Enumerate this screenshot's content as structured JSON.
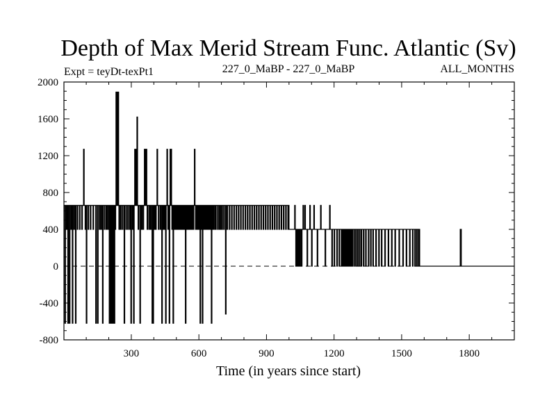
{
  "header": {
    "title": "Depth of Max Merid Stream Func. Atlantic (Sv)",
    "left": "Expt = teyDt-texPt1",
    "center": "227_0_MaBP - 227_0_MaBP",
    "right": "ALL_MONTHS"
  },
  "chart_data": {
    "type": "line",
    "title": "Depth of Max Merid Stream Func. Atlantic (Sv)",
    "xlabel": "Time (in years since start)",
    "ylabel": "",
    "xlim": [
      1,
      2000
    ],
    "ylim": [
      -800,
      2000
    ],
    "x_ticks": [
      300,
      600,
      900,
      1200,
      1500,
      1800
    ],
    "x_minor_step": 100,
    "y_ticks": [
      -800,
      -400,
      0,
      400,
      800,
      1200,
      1600,
      2000
    ],
    "y_minor_step": 100,
    "zero_line": "dashed",
    "grid": false,
    "levels": [
      -620,
      0,
      400,
      660,
      1270,
      1620,
      1890
    ],
    "segments": [
      {
        "x": [
          1,
          1000
        ],
        "base": 660,
        "dips": [
          {
            "x": 5,
            "to": -620
          },
          {
            "x": 12,
            "to": 400
          },
          {
            "x": 18,
            "to": -620
          },
          {
            "x": 25,
            "to": -620
          },
          {
            "x": 32,
            "to": 400
          },
          {
            "x": 38,
            "to": -620
          },
          {
            "x": 45,
            "to": 400
          },
          {
            "x": 52,
            "to": -620
          },
          {
            "x": 60,
            "to": 400
          },
          {
            "x": 70,
            "to": 400
          },
          {
            "x": 80,
            "to": 400
          },
          {
            "x": 88,
            "to": 1270
          },
          {
            "x": 95,
            "to": 400
          },
          {
            "x": 100,
            "to": -620
          },
          {
            "x": 108,
            "to": 400
          },
          {
            "x": 118,
            "to": 400
          },
          {
            "x": 130,
            "to": 400
          },
          {
            "x": 142,
            "to": -620
          },
          {
            "x": 150,
            "to": -620
          },
          {
            "x": 158,
            "to": 400
          },
          {
            "x": 165,
            "to": 400
          },
          {
            "x": 172,
            "to": -620
          },
          {
            "x": 180,
            "to": 400
          },
          {
            "x": 188,
            "to": 400
          },
          {
            "x": 195,
            "to": 400
          },
          {
            "x": 202,
            "to": -620
          },
          {
            "x": 208,
            "to": -620
          },
          {
            "x": 212,
            "to": -620
          },
          {
            "x": 216,
            "to": -620
          },
          {
            "x": 220,
            "to": -620
          },
          {
            "x": 224,
            "to": -620
          },
          {
            "x": 228,
            "to": 400
          },
          {
            "x": 232,
            "to": 1890
          },
          {
            "x": 235,
            "to": 1890
          },
          {
            "x": 238,
            "to": 1890
          },
          {
            "x": 241,
            "to": 1890
          },
          {
            "x": 245,
            "to": 400
          },
          {
            "x": 252,
            "to": 400
          },
          {
            "x": 260,
            "to": 400
          },
          {
            "x": 268,
            "to": -620
          },
          {
            "x": 276,
            "to": 400
          },
          {
            "x": 284,
            "to": 400
          },
          {
            "x": 292,
            "to": 400
          },
          {
            "x": 298,
            "to": -620
          },
          {
            "x": 305,
            "to": 400
          },
          {
            "x": 310,
            "to": -620
          },
          {
            "x": 315,
            "to": 1270
          },
          {
            "x": 320,
            "to": 1270
          },
          {
            "x": 325,
            "to": 1620
          },
          {
            "x": 330,
            "to": 400
          },
          {
            "x": 338,
            "to": -620
          },
          {
            "x": 345,
            "to": 400
          },
          {
            "x": 352,
            "to": 400
          },
          {
            "x": 358,
            "to": 1270
          },
          {
            "x": 362,
            "to": 1270
          },
          {
            "x": 366,
            "to": 1270
          },
          {
            "x": 370,
            "to": 400
          },
          {
            "x": 378,
            "to": 400
          },
          {
            "x": 385,
            "to": 400
          },
          {
            "x": 392,
            "to": -620
          },
          {
            "x": 396,
            "to": -620
          },
          {
            "x": 402,
            "to": 400
          },
          {
            "x": 408,
            "to": 400
          },
          {
            "x": 414,
            "to": 1270
          },
          {
            "x": 420,
            "to": 400
          },
          {
            "x": 428,
            "to": 400
          },
          {
            "x": 435,
            "to": -620
          },
          {
            "x": 440,
            "to": 400
          },
          {
            "x": 446,
            "to": 400
          },
          {
            "x": 452,
            "to": -620
          },
          {
            "x": 458,
            "to": 1270
          },
          {
            "x": 462,
            "to": 400
          },
          {
            "x": 468,
            "to": -620
          },
          {
            "x": 472,
            "to": 1270
          },
          {
            "x": 476,
            "to": 1270
          },
          {
            "x": 480,
            "to": 400
          },
          {
            "x": 485,
            "to": -620
          },
          {
            "x": 490,
            "to": 400
          },
          {
            "x": 495,
            "to": 400
          },
          {
            "x": 500,
            "to": 400
          },
          {
            "x": 505,
            "to": 400
          },
          {
            "x": 510,
            "to": 400
          },
          {
            "x": 515,
            "to": 400
          },
          {
            "x": 520,
            "to": 400
          },
          {
            "x": 525,
            "to": 400
          },
          {
            "x": 530,
            "to": 400
          },
          {
            "x": 535,
            "to": 400
          },
          {
            "x": 540,
            "to": -620
          },
          {
            "x": 545,
            "to": 400
          },
          {
            "x": 550,
            "to": 400
          },
          {
            "x": 555,
            "to": 400
          },
          {
            "x": 560,
            "to": 400
          },
          {
            "x": 565,
            "to": 400
          },
          {
            "x": 570,
            "to": 400
          },
          {
            "x": 575,
            "to": 400
          },
          {
            "x": 580,
            "to": 1270
          },
          {
            "x": 585,
            "to": 400
          },
          {
            "x": 590,
            "to": 400
          },
          {
            "x": 595,
            "to": 400
          },
          {
            "x": 600,
            "to": 400
          },
          {
            "x": 605,
            "to": -620
          },
          {
            "x": 610,
            "to": 400
          },
          {
            "x": 615,
            "to": -620
          },
          {
            "x": 620,
            "to": 400
          },
          {
            "x": 625,
            "to": 400
          },
          {
            "x": 630,
            "to": 400
          },
          {
            "x": 635,
            "to": 400
          },
          {
            "x": 640,
            "to": 400
          },
          {
            "x": 645,
            "to": 400
          },
          {
            "x": 650,
            "to": 400
          },
          {
            "x": 655,
            "to": -620
          },
          {
            "x": 660,
            "to": 400
          },
          {
            "x": 665,
            "to": 400
          },
          {
            "x": 672,
            "to": 400
          },
          {
            "x": 680,
            "to": 400
          },
          {
            "x": 688,
            "to": 400
          },
          {
            "x": 695,
            "to": 400
          },
          {
            "x": 702,
            "to": 400
          },
          {
            "x": 710,
            "to": 400
          },
          {
            "x": 718,
            "to": -520
          },
          {
            "x": 725,
            "to": 400
          },
          {
            "x": 735,
            "to": 400
          },
          {
            "x": 745,
            "to": 400
          },
          {
            "x": 755,
            "to": 400
          },
          {
            "x": 765,
            "to": 400
          },
          {
            "x": 775,
            "to": 400
          },
          {
            "x": 785,
            "to": 400
          },
          {
            "x": 795,
            "to": 400
          },
          {
            "x": 805,
            "to": 400
          },
          {
            "x": 815,
            "to": 400
          },
          {
            "x": 825,
            "to": 400
          },
          {
            "x": 835,
            "to": 400
          },
          {
            "x": 845,
            "to": 400
          },
          {
            "x": 855,
            "to": 400
          },
          {
            "x": 865,
            "to": 400
          },
          {
            "x": 875,
            "to": 400
          },
          {
            "x": 885,
            "to": 400
          },
          {
            "x": 895,
            "to": 400
          },
          {
            "x": 905,
            "to": 400
          },
          {
            "x": 915,
            "to": 400
          },
          {
            "x": 925,
            "to": 400
          },
          {
            "x": 935,
            "to": 400
          },
          {
            "x": 945,
            "to": 400
          },
          {
            "x": 955,
            "to": 400
          },
          {
            "x": 965,
            "to": 400
          },
          {
            "x": 975,
            "to": 400
          },
          {
            "x": 985,
            "to": 400
          },
          {
            "x": 995,
            "to": 400
          }
        ]
      },
      {
        "x": [
          1000,
          1230
        ],
        "base": 400,
        "dips": [
          {
            "x": 1025,
            "to": 660
          },
          {
            "x": 1030,
            "to": 0
          },
          {
            "x": 1036,
            "to": 0
          },
          {
            "x": 1042,
            "to": 0
          },
          {
            "x": 1048,
            "to": 0
          },
          {
            "x": 1055,
            "to": 0
          },
          {
            "x": 1062,
            "to": 660
          },
          {
            "x": 1070,
            "to": 660
          },
          {
            "x": 1080,
            "to": 0
          },
          {
            "x": 1092,
            "to": 660
          },
          {
            "x": 1100,
            "to": 0
          },
          {
            "x": 1110,
            "to": 660
          },
          {
            "x": 1125,
            "to": 0
          },
          {
            "x": 1140,
            "to": 660
          },
          {
            "x": 1160,
            "to": 0
          },
          {
            "x": 1180,
            "to": 660
          },
          {
            "x": 1190,
            "to": 0
          },
          {
            "x": 1200,
            "to": 0
          },
          {
            "x": 1212,
            "to": 0
          },
          {
            "x": 1222,
            "to": 0
          }
        ]
      },
      {
        "x": [
          1230,
          1580
        ],
        "base": 400,
        "dips": [
          {
            "x": 1232,
            "to": 0
          },
          {
            "x": 1238,
            "to": 0
          },
          {
            "x": 1244,
            "to": 0
          },
          {
            "x": 1250,
            "to": 0
          },
          {
            "x": 1256,
            "to": 0
          },
          {
            "x": 1262,
            "to": 0
          },
          {
            "x": 1268,
            "to": 0
          },
          {
            "x": 1274,
            "to": 0
          },
          {
            "x": 1280,
            "to": 0
          },
          {
            "x": 1288,
            "to": 0
          },
          {
            "x": 1296,
            "to": 0
          },
          {
            "x": 1304,
            "to": 0
          },
          {
            "x": 1312,
            "to": 0
          },
          {
            "x": 1320,
            "to": 0
          },
          {
            "x": 1330,
            "to": 0
          },
          {
            "x": 1340,
            "to": 0
          },
          {
            "x": 1352,
            "to": 0
          },
          {
            "x": 1362,
            "to": 0
          },
          {
            "x": 1372,
            "to": 0
          },
          {
            "x": 1385,
            "to": 0
          },
          {
            "x": 1398,
            "to": 0
          },
          {
            "x": 1410,
            "to": 0
          },
          {
            "x": 1425,
            "to": 0
          },
          {
            "x": 1440,
            "to": 0
          },
          {
            "x": 1455,
            "to": 0
          },
          {
            "x": 1470,
            "to": 0
          },
          {
            "x": 1488,
            "to": 0
          },
          {
            "x": 1505,
            "to": 0
          },
          {
            "x": 1520,
            "to": 0
          },
          {
            "x": 1535,
            "to": 0
          },
          {
            "x": 1548,
            "to": 0
          },
          {
            "x": 1558,
            "to": 0
          },
          {
            "x": 1566,
            "to": 0
          },
          {
            "x": 1574,
            "to": 0
          }
        ]
      },
      {
        "x": [
          1580,
          2000
        ],
        "base": 0,
        "dips": [
          {
            "x": 1760,
            "to": 400
          },
          {
            "x": 1762,
            "to": 400
          }
        ]
      }
    ]
  }
}
